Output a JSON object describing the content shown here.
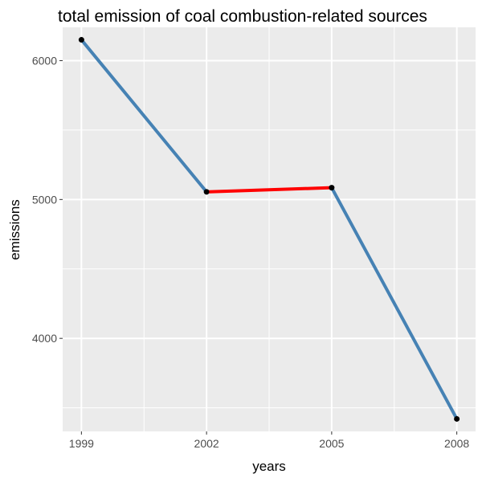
{
  "chart_data": {
    "type": "line",
    "title": "total emission of coal combustion-related sources",
    "xlabel": "years",
    "ylabel": "emissions",
    "x": [
      1999,
      2002,
      2005,
      2008
    ],
    "x_tick_labels": [
      "1999",
      "2002",
      "2005",
      "2008"
    ],
    "y_ticks": [
      4000,
      5000,
      6000
    ],
    "y_tick_labels": [
      "4000",
      "5000",
      "6000"
    ],
    "ylim": [
      3330,
      6240
    ],
    "grid": true,
    "series": [
      {
        "values": [
          6150,
          5055,
          5085,
          3420
        ]
      }
    ],
    "segment_colors": [
      "#4682b4",
      "#ff0000",
      "#4682b4"
    ],
    "point_color": "#000000",
    "panel_background": "#ebebeb",
    "grid_color": "#ffffff"
  }
}
